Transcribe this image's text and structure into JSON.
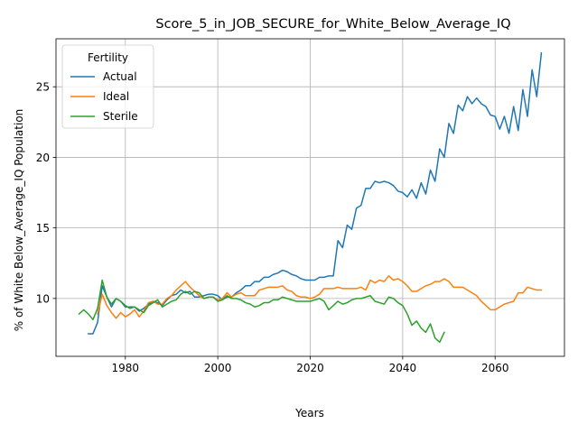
{
  "chart_data": {
    "type": "line",
    "title": "Score_5_in_JOB_SECURE_for_White_Below_Average_IQ",
    "xlabel": "Years",
    "ylabel": "% of White Below_Average_IQ Population",
    "xlim": [
      1965,
      2075
    ],
    "ylim": [
      5.9,
      28.4
    ],
    "xticks": [
      1980,
      2000,
      2020,
      2040,
      2060
    ],
    "yticks": [
      10,
      15,
      20,
      25
    ],
    "xtick_labels": [
      "1980",
      "2000",
      "2020",
      "2040",
      "2060"
    ],
    "ytick_labels": [
      "10",
      "15",
      "20",
      "25"
    ],
    "grid": true,
    "legend": {
      "title": "Fertility",
      "placement": "top-left"
    },
    "series": [
      {
        "name": "Actual",
        "color": "#1f77b4",
        "x": [
          1972,
          1973,
          1974,
          1975,
          1976,
          1977,
          1978,
          1979,
          1980,
          1981,
          1982,
          1983,
          1984,
          1985,
          1986,
          1987,
          1988,
          1989,
          1990,
          1991,
          1992,
          1993,
          1994,
          1995,
          1996,
          1997,
          1998,
          1999,
          2000,
          2001,
          2002,
          2003,
          2004,
          2005,
          2006,
          2007,
          2008,
          2009,
          2010,
          2011,
          2012,
          2013,
          2014,
          2015,
          2016,
          2017,
          2018,
          2019,
          2020,
          2021,
          2022,
          2023,
          2024,
          2025,
          2026,
          2027,
          2028,
          2029,
          2030,
          2031,
          2032,
          2033,
          2034,
          2035,
          2036,
          2037,
          2038,
          2039,
          2040,
          2041,
          2042,
          2043,
          2044,
          2045,
          2046,
          2047,
          2048,
          2049,
          2050,
          2051,
          2052,
          2053,
          2054,
          2055,
          2056,
          2057,
          2058,
          2059,
          2060,
          2061,
          2062,
          2063,
          2064,
          2065,
          2066,
          2067,
          2068,
          2069,
          2070
        ],
        "y": [
          7.5,
          7.5,
          8.3,
          10.9,
          10.1,
          9.4,
          10.0,
          9.8,
          9.4,
          9.4,
          9.4,
          9.1,
          9.3,
          9.6,
          9.8,
          9.7,
          9.5,
          9.9,
          10.2,
          10.3,
          10.6,
          10.4,
          10.5,
          10.1,
          10.1,
          10.2,
          10.3,
          10.3,
          10.2,
          9.9,
          10.1,
          10.1,
          10.4,
          10.6,
          10.9,
          10.9,
          11.2,
          11.2,
          11.5,
          11.5,
          11.7,
          11.8,
          12.0,
          11.9,
          11.7,
          11.6,
          11.4,
          11.3,
          11.3,
          11.3,
          11.5,
          11.5,
          11.6,
          11.6,
          14.1,
          13.6,
          15.2,
          14.9,
          16.4,
          16.6,
          17.8,
          17.8,
          18.3,
          18.2,
          18.3,
          18.2,
          18.0,
          17.6,
          17.5,
          17.2,
          17.7,
          17.1,
          18.2,
          17.4,
          19.1,
          18.3,
          20.6,
          20.0,
          22.4,
          21.7,
          23.7,
          23.3,
          24.3,
          23.8,
          24.2,
          23.8,
          23.6,
          23.0,
          22.9,
          22.0,
          22.9,
          21.7,
          23.6,
          21.9,
          24.8,
          22.9,
          26.2,
          24.3,
          27.4
        ]
      },
      {
        "name": "Ideal",
        "color": "#ff7f0e",
        "x": [
          1974,
          1975,
          1976,
          1977,
          1978,
          1979,
          1980,
          1981,
          1982,
          1983,
          1984,
          1985,
          1986,
          1987,
          1988,
          1989,
          1990,
          1991,
          1992,
          1993,
          1994,
          1995,
          1996,
          1997,
          1998,
          1999,
          2000,
          2001,
          2002,
          2003,
          2004,
          2005,
          2006,
          2007,
          2008,
          2009,
          2010,
          2011,
          2012,
          2013,
          2014,
          2015,
          2016,
          2017,
          2018,
          2019,
          2020,
          2021,
          2022,
          2023,
          2024,
          2025,
          2026,
          2027,
          2028,
          2029,
          2030,
          2031,
          2032,
          2033,
          2034,
          2035,
          2036,
          2037,
          2038,
          2039,
          2040,
          2041,
          2042,
          2043,
          2044,
          2045,
          2046,
          2047,
          2048,
          2049,
          2050,
          2051,
          2052,
          2053,
          2054,
          2055,
          2056,
          2057,
          2058,
          2059,
          2060,
          2061,
          2062,
          2063,
          2064,
          2065,
          2066,
          2067,
          2068,
          2069,
          2070
        ],
        "y": [
          8.9,
          10.3,
          9.5,
          9.0,
          8.6,
          9.0,
          8.7,
          8.9,
          9.2,
          8.7,
          9.1,
          9.7,
          9.8,
          9.6,
          9.6,
          10.0,
          10.2,
          10.6,
          10.9,
          11.2,
          10.8,
          10.5,
          10.2,
          10.0,
          10.1,
          10.1,
          9.9,
          10.0,
          10.4,
          10.1,
          10.3,
          10.4,
          10.2,
          10.2,
          10.2,
          10.6,
          10.7,
          10.8,
          10.8,
          10.8,
          10.9,
          10.6,
          10.5,
          10.2,
          10.1,
          10.1,
          10.0,
          10.1,
          10.3,
          10.7,
          10.7,
          10.7,
          10.8,
          10.7,
          10.7,
          10.7,
          10.7,
          10.8,
          10.6,
          11.3,
          11.1,
          11.3,
          11.2,
          11.6,
          11.3,
          11.4,
          11.2,
          10.9,
          10.5,
          10.5,
          10.7,
          10.9,
          11.0,
          11.2,
          11.2,
          11.4,
          11.2,
          10.8,
          10.8,
          10.8,
          10.6,
          10.4,
          10.2,
          9.8,
          9.5,
          9.2,
          9.2,
          9.4,
          9.6,
          9.7,
          9.8,
          10.4,
          10.4,
          10.8,
          10.7,
          10.6,
          10.6
        ]
      },
      {
        "name": "Sterile",
        "color": "#2ca02c",
        "x": [
          1970,
          1971,
          1972,
          1973,
          1974,
          1975,
          1976,
          1977,
          1978,
          1979,
          1980,
          1981,
          1982,
          1983,
          1984,
          1985,
          1986,
          1987,
          1988,
          1989,
          1990,
          1991,
          1992,
          1993,
          1994,
          1995,
          1996,
          1997,
          1998,
          1999,
          2000,
          2001,
          2002,
          2003,
          2004,
          2005,
          2006,
          2007,
          2008,
          2009,
          2010,
          2011,
          2012,
          2013,
          2014,
          2015,
          2016,
          2017,
          2018,
          2019,
          2020,
          2021,
          2022,
          2023,
          2024,
          2025,
          2026,
          2027,
          2028,
          2029,
          2030,
          2031,
          2032,
          2033,
          2034,
          2035,
          2036,
          2037,
          2038,
          2039,
          2040,
          2041,
          2042,
          2043,
          2044,
          2045,
          2046,
          2047,
          2048,
          2049
        ],
        "y": [
          8.9,
          9.2,
          8.9,
          8.5,
          9.3,
          11.3,
          10.1,
          9.6,
          10.0,
          9.8,
          9.5,
          9.3,
          9.4,
          9.2,
          9.0,
          9.5,
          9.7,
          9.9,
          9.4,
          9.6,
          9.8,
          9.9,
          10.3,
          10.5,
          10.3,
          10.5,
          10.4,
          10.0,
          10.1,
          10.1,
          9.8,
          9.9,
          10.2,
          10.0,
          10.0,
          9.9,
          9.7,
          9.6,
          9.4,
          9.5,
          9.7,
          9.7,
          9.9,
          9.9,
          10.1,
          10.0,
          9.9,
          9.8,
          9.8,
          9.8,
          9.8,
          9.9,
          10.0,
          9.8,
          9.2,
          9.5,
          9.8,
          9.6,
          9.7,
          9.9,
          10.0,
          10.0,
          10.1,
          10.2,
          9.8,
          9.7,
          9.6,
          10.1,
          10.0,
          9.7,
          9.5,
          8.9,
          8.1,
          8.4,
          7.9,
          7.6,
          8.2,
          7.2,
          6.9,
          7.6
        ]
      }
    ]
  }
}
